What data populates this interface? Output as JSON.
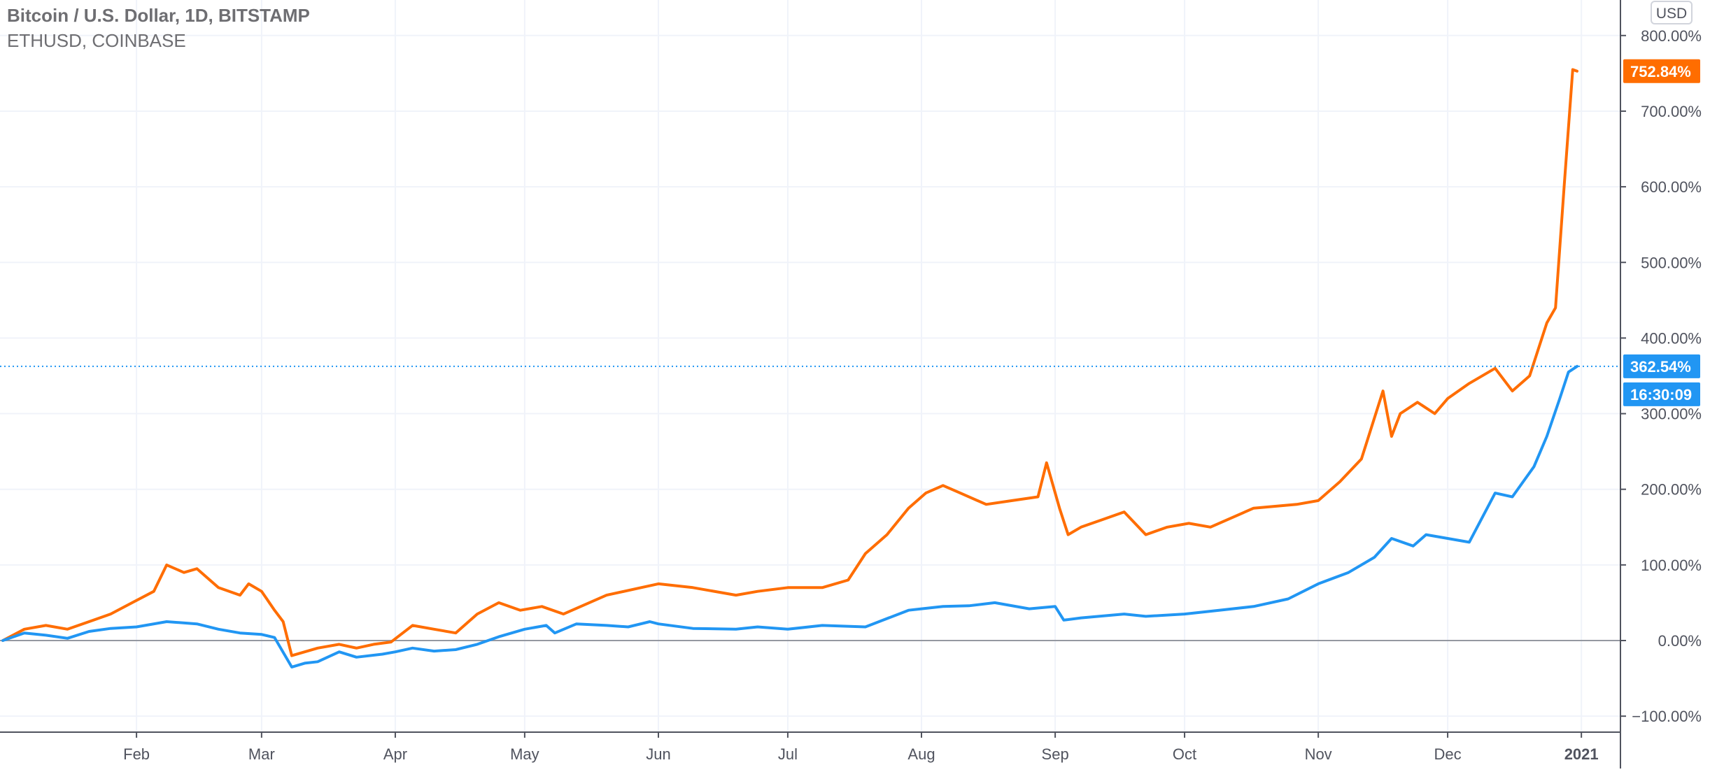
{
  "legend": {
    "main": "Bitcoin / U.S. Dollar, 1D, BITSTAMP",
    "compare": "ETHUSD, COINBASE"
  },
  "currency": "USD",
  "colors": {
    "btc": "#2196f3",
    "eth": "#ff6d00",
    "grid": "#f0f3fa",
    "axis": "#50535e",
    "zero": "#9598a1"
  },
  "chart_data": {
    "type": "line",
    "title": "Bitcoin / U.S. Dollar, 1D, BITSTAMP",
    "xlabel": "",
    "ylabel": "",
    "ylim": [
      -120,
      860
    ],
    "y_ticks": [
      -100,
      0,
      100,
      200,
      300,
      400,
      500,
      600,
      700,
      800
    ],
    "y_tick_labels": [
      "−100.00%",
      "0.00%",
      "100.00%",
      "200.00%",
      "300.00%",
      "400.00%",
      "500.00%",
      "600.00%",
      "700.00%",
      "800.00%"
    ],
    "xlim": [
      0,
      365
    ],
    "x_ticks": [
      31,
      60,
      91,
      121,
      152,
      182,
      213,
      244,
      274,
      305,
      335,
      366
    ],
    "x_tick_labels": [
      "Feb",
      "Mar",
      "Apr",
      "May",
      "Jun",
      "Jul",
      "Aug",
      "Sep",
      "Oct",
      "Nov",
      "Dec",
      "2021"
    ],
    "series": [
      {
        "name": "Bitcoin / U.S. Dollar, 1D, BITSTAMP",
        "color": "#2196f3",
        "x": [
          0,
          5,
          10,
          15,
          20,
          25,
          31,
          38,
          45,
          50,
          55,
          60,
          63,
          67,
          70,
          73,
          78,
          82,
          88,
          91,
          95,
          100,
          105,
          110,
          115,
          118,
          121,
          126,
          128,
          133,
          140,
          145,
          150,
          152,
          160,
          170,
          175,
          182,
          190,
          200,
          210,
          213,
          218,
          224,
          230,
          238,
          244,
          246,
          250,
          260,
          265,
          274,
          282,
          290,
          298,
          305,
          312,
          318,
          322,
          327,
          330,
          335,
          340,
          346,
          350,
          355,
          358,
          361,
          363,
          365
        ],
        "values": [
          0,
          10,
          7,
          3,
          12,
          16,
          18,
          25,
          22,
          15,
          10,
          8,
          4,
          -35,
          -30,
          -28,
          -15,
          -22,
          -18,
          -15,
          -10,
          -14,
          -12,
          -5,
          5,
          10,
          15,
          20,
          10,
          22,
          20,
          18,
          25,
          22,
          16,
          15,
          18,
          15,
          20,
          18,
          40,
          42,
          45,
          46,
          50,
          42,
          45,
          27,
          30,
          35,
          32,
          35,
          40,
          45,
          55,
          75,
          90,
          110,
          135,
          125,
          140,
          135,
          130,
          195,
          190,
          230,
          270,
          320,
          355,
          362.54
        ]
      },
      {
        "name": "ETHUSD, COINBASE",
        "color": "#ff6d00",
        "x": [
          0,
          5,
          10,
          15,
          20,
          25,
          30,
          35,
          38,
          42,
          45,
          50,
          55,
          57,
          60,
          63,
          65,
          67,
          70,
          73,
          78,
          82,
          86,
          90,
          95,
          100,
          105,
          110,
          115,
          120,
          125,
          130,
          140,
          148,
          152,
          160,
          170,
          175,
          182,
          190,
          196,
          200,
          205,
          210,
          214,
          218,
          222,
          228,
          234,
          240,
          242,
          245,
          247,
          250,
          255,
          260,
          265,
          270,
          275,
          280,
          290,
          300,
          305,
          310,
          315,
          320,
          322,
          324,
          328,
          332,
          335,
          340,
          346,
          350,
          354,
          358,
          360,
          362,
          364,
          365
        ],
        "values": [
          0,
          15,
          20,
          15,
          25,
          35,
          50,
          65,
          100,
          90,
          95,
          70,
          60,
          75,
          65,
          40,
          25,
          -20,
          -15,
          -10,
          -5,
          -10,
          -5,
          -2,
          20,
          15,
          10,
          35,
          50,
          40,
          45,
          35,
          60,
          70,
          75,
          70,
          60,
          65,
          70,
          70,
          80,
          115,
          140,
          175,
          195,
          205,
          195,
          180,
          185,
          190,
          235,
          175,
          140,
          150,
          160,
          170,
          140,
          150,
          155,
          150,
          175,
          180,
          185,
          210,
          240,
          330,
          270,
          300,
          315,
          300,
          320,
          340,
          360,
          330,
          350,
          420,
          440,
          600,
          755,
          752.84
        ]
      }
    ]
  },
  "price_labels": {
    "eth": "752.84%",
    "btc": "362.54%",
    "countdown": "16:30:09"
  }
}
